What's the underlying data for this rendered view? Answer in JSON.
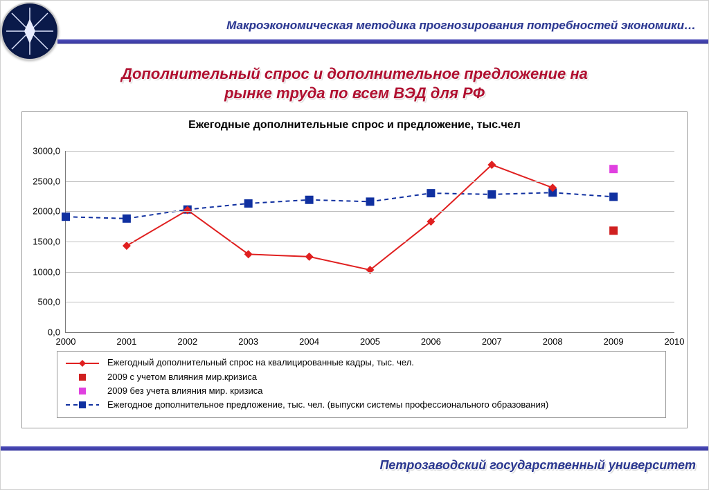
{
  "header": {
    "subtitle": "Макроэкономическая методика прогнозирования потребностей экономики…"
  },
  "slide": {
    "title_l1": "Дополнительный спрос и дополнительное предложение на",
    "title_l2": "рынке труда по всем ВЭД для РФ"
  },
  "footer": {
    "text": "Петрозаводский государственный университет"
  },
  "chart": {
    "title": "Ежегодные дополнительные спрос и предложение, тыс.чел",
    "type": "line",
    "x": {
      "min": 2000,
      "max": 2010,
      "step": 1
    },
    "y": {
      "min": 0,
      "max": 3000,
      "step": 500,
      "labels": [
        "0,0",
        "500,0",
        "1000,0",
        "1500,0",
        "2000,0",
        "2500,0",
        "3000,0"
      ]
    },
    "grid_color": "#bfbfbf",
    "axis_color": "#7a7a7a",
    "series": {
      "demand": {
        "label": "Ежегодный дополнительный спрос на квалицированные кадры, тыс. чел.",
        "color": "#e02020",
        "marker": "diamond",
        "dash": "none",
        "line_width": 2,
        "x": [
          2001,
          2002,
          2003,
          2004,
          2005,
          2006,
          2007,
          2008
        ],
        "y": [
          1430,
          2020,
          1290,
          1250,
          1030,
          1830,
          2770,
          2390
        ]
      },
      "supply": {
        "label": "Ежегодное дополнительное предложение, тыс. чел. (выпуски системы профессионального образования)",
        "color": "#1030a0",
        "marker": "square",
        "dash": "6,5",
        "line_width": 2,
        "x": [
          2000,
          2001,
          2002,
          2003,
          2004,
          2005,
          2006,
          2007,
          2008,
          2009
        ],
        "y": [
          1910,
          1880,
          2030,
          2130,
          2190,
          2160,
          2300,
          2280,
          2310,
          2240
        ]
      },
      "crisis_yes": {
        "label": "2009 с учетом влияния мир.кризиса",
        "color": "#d02020",
        "marker": "square",
        "x": [
          2009
        ],
        "y": [
          1680
        ]
      },
      "crisis_no": {
        "label": "2009 без учета влияния мир. кризиса",
        "color": "#e040e0",
        "marker": "square",
        "x": [
          2009
        ],
        "y": [
          2700
        ]
      }
    },
    "legend_order": [
      "demand",
      "crisis_yes",
      "crisis_no",
      "supply"
    ],
    "marker_size": 6,
    "tick_fontsize": 13,
    "title_fontsize": 16
  },
  "colors": {
    "brand_purple": "#2a3790",
    "title_red": "#b01030",
    "band": "#3838a0"
  }
}
